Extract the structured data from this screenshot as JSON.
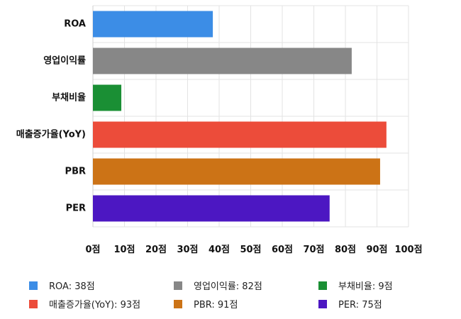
{
  "chart_data": {
    "type": "bar",
    "orientation": "horizontal",
    "title": "",
    "xlabel": "",
    "ylabel": "",
    "xlim": [
      0,
      100
    ],
    "tick_step": 10,
    "tick_suffix": "점",
    "grid": true,
    "legend_position": "bottom",
    "categories": [
      "ROA",
      "영업이익률",
      "부채비율",
      "매출증가율(YoY)",
      "PBR",
      "PER"
    ],
    "values": [
      38,
      82,
      9,
      93,
      91,
      75
    ],
    "colors": [
      "#3c8de6",
      "#878787",
      "#1a8f34",
      "#ec4c3a",
      "#cc7316",
      "#4c17c2"
    ],
    "tick_labels": [
      "0점",
      "10점",
      "20점",
      "30점",
      "40점",
      "50점",
      "60점",
      "70점",
      "80점",
      "90점",
      "100점"
    ],
    "legend": [
      "ROA: 38점",
      "영업이익률: 82점",
      "부채비율: 9점",
      "매출증가율(YoY): 93점",
      "PBR: 91점",
      "PER: 75점"
    ]
  }
}
